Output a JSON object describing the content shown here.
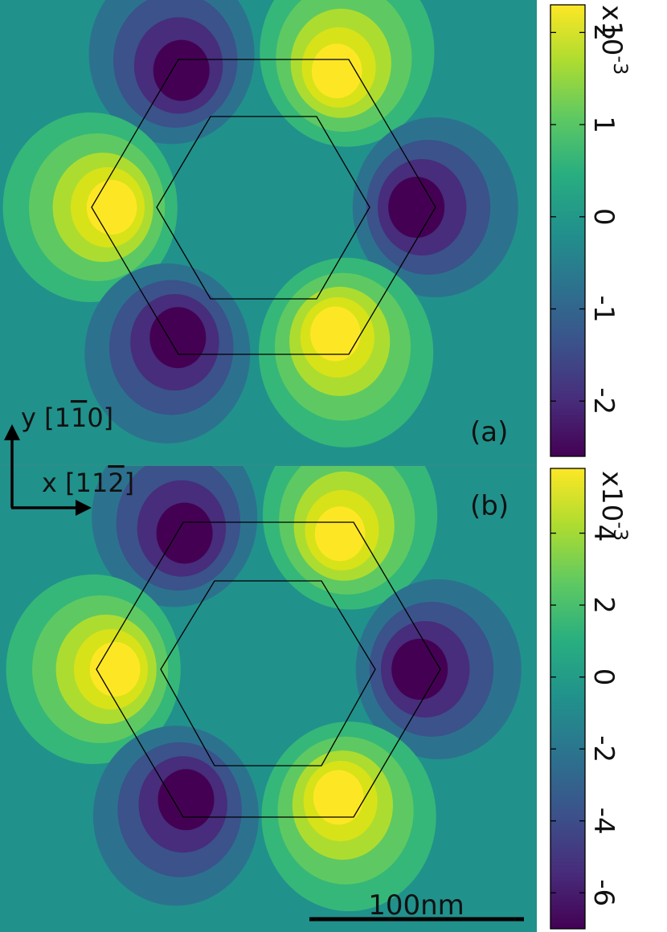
{
  "chart_data": [
    {
      "type": "heatmap",
      "panel_label": "(a)",
      "colorbar": {
        "ticks": [
          2,
          1,
          0,
          -1,
          -2
        ],
        "tick_labels": [
          "2",
          "1",
          "0",
          "-1",
          "-2"
        ],
        "range": [
          -2.6,
          2.3
        ],
        "scale_label": "x10",
        "scale_exponent": "-3"
      },
      "lobes": [
        {
          "position": "top-left",
          "sign": "negative"
        },
        {
          "position": "top-right",
          "sign": "positive"
        },
        {
          "position": "left",
          "sign": "positive"
        },
        {
          "position": "right",
          "sign": "negative"
        },
        {
          "position": "bottom-left",
          "sign": "negative"
        },
        {
          "position": "bottom-right",
          "sign": "positive"
        }
      ]
    },
    {
      "type": "heatmap",
      "panel_label": "(b)",
      "colorbar": {
        "ticks": [
          4,
          2,
          0,
          -2,
          -4,
          -6
        ],
        "tick_labels": [
          "4",
          "2",
          "0",
          "-2",
          "-4",
          "-6"
        ],
        "range": [
          -7,
          5.8
        ],
        "scale_label": "x10",
        "scale_exponent": "-3"
      },
      "lobes": [
        {
          "position": "top-left",
          "sign": "negative"
        },
        {
          "position": "top-right",
          "sign": "positive"
        },
        {
          "position": "left",
          "sign": "positive"
        },
        {
          "position": "right",
          "sign": "negative"
        },
        {
          "position": "bottom-left",
          "sign": "negative"
        },
        {
          "position": "bottom-right",
          "sign": "positive"
        }
      ]
    }
  ],
  "axes_indicator": {
    "y_label": "y [1",
    "y_bar_digit": "1",
    "y_tail": "0]",
    "x_label": "x [11",
    "x_bar_digit": "2",
    "x_tail": "]"
  },
  "scale_bar": {
    "label": "100nm",
    "value": 100,
    "unit": "nm"
  },
  "colors": {
    "background": "#21918c",
    "positive_peak": "#fde725",
    "negative_peak": "#440154",
    "outline": "#000000"
  }
}
